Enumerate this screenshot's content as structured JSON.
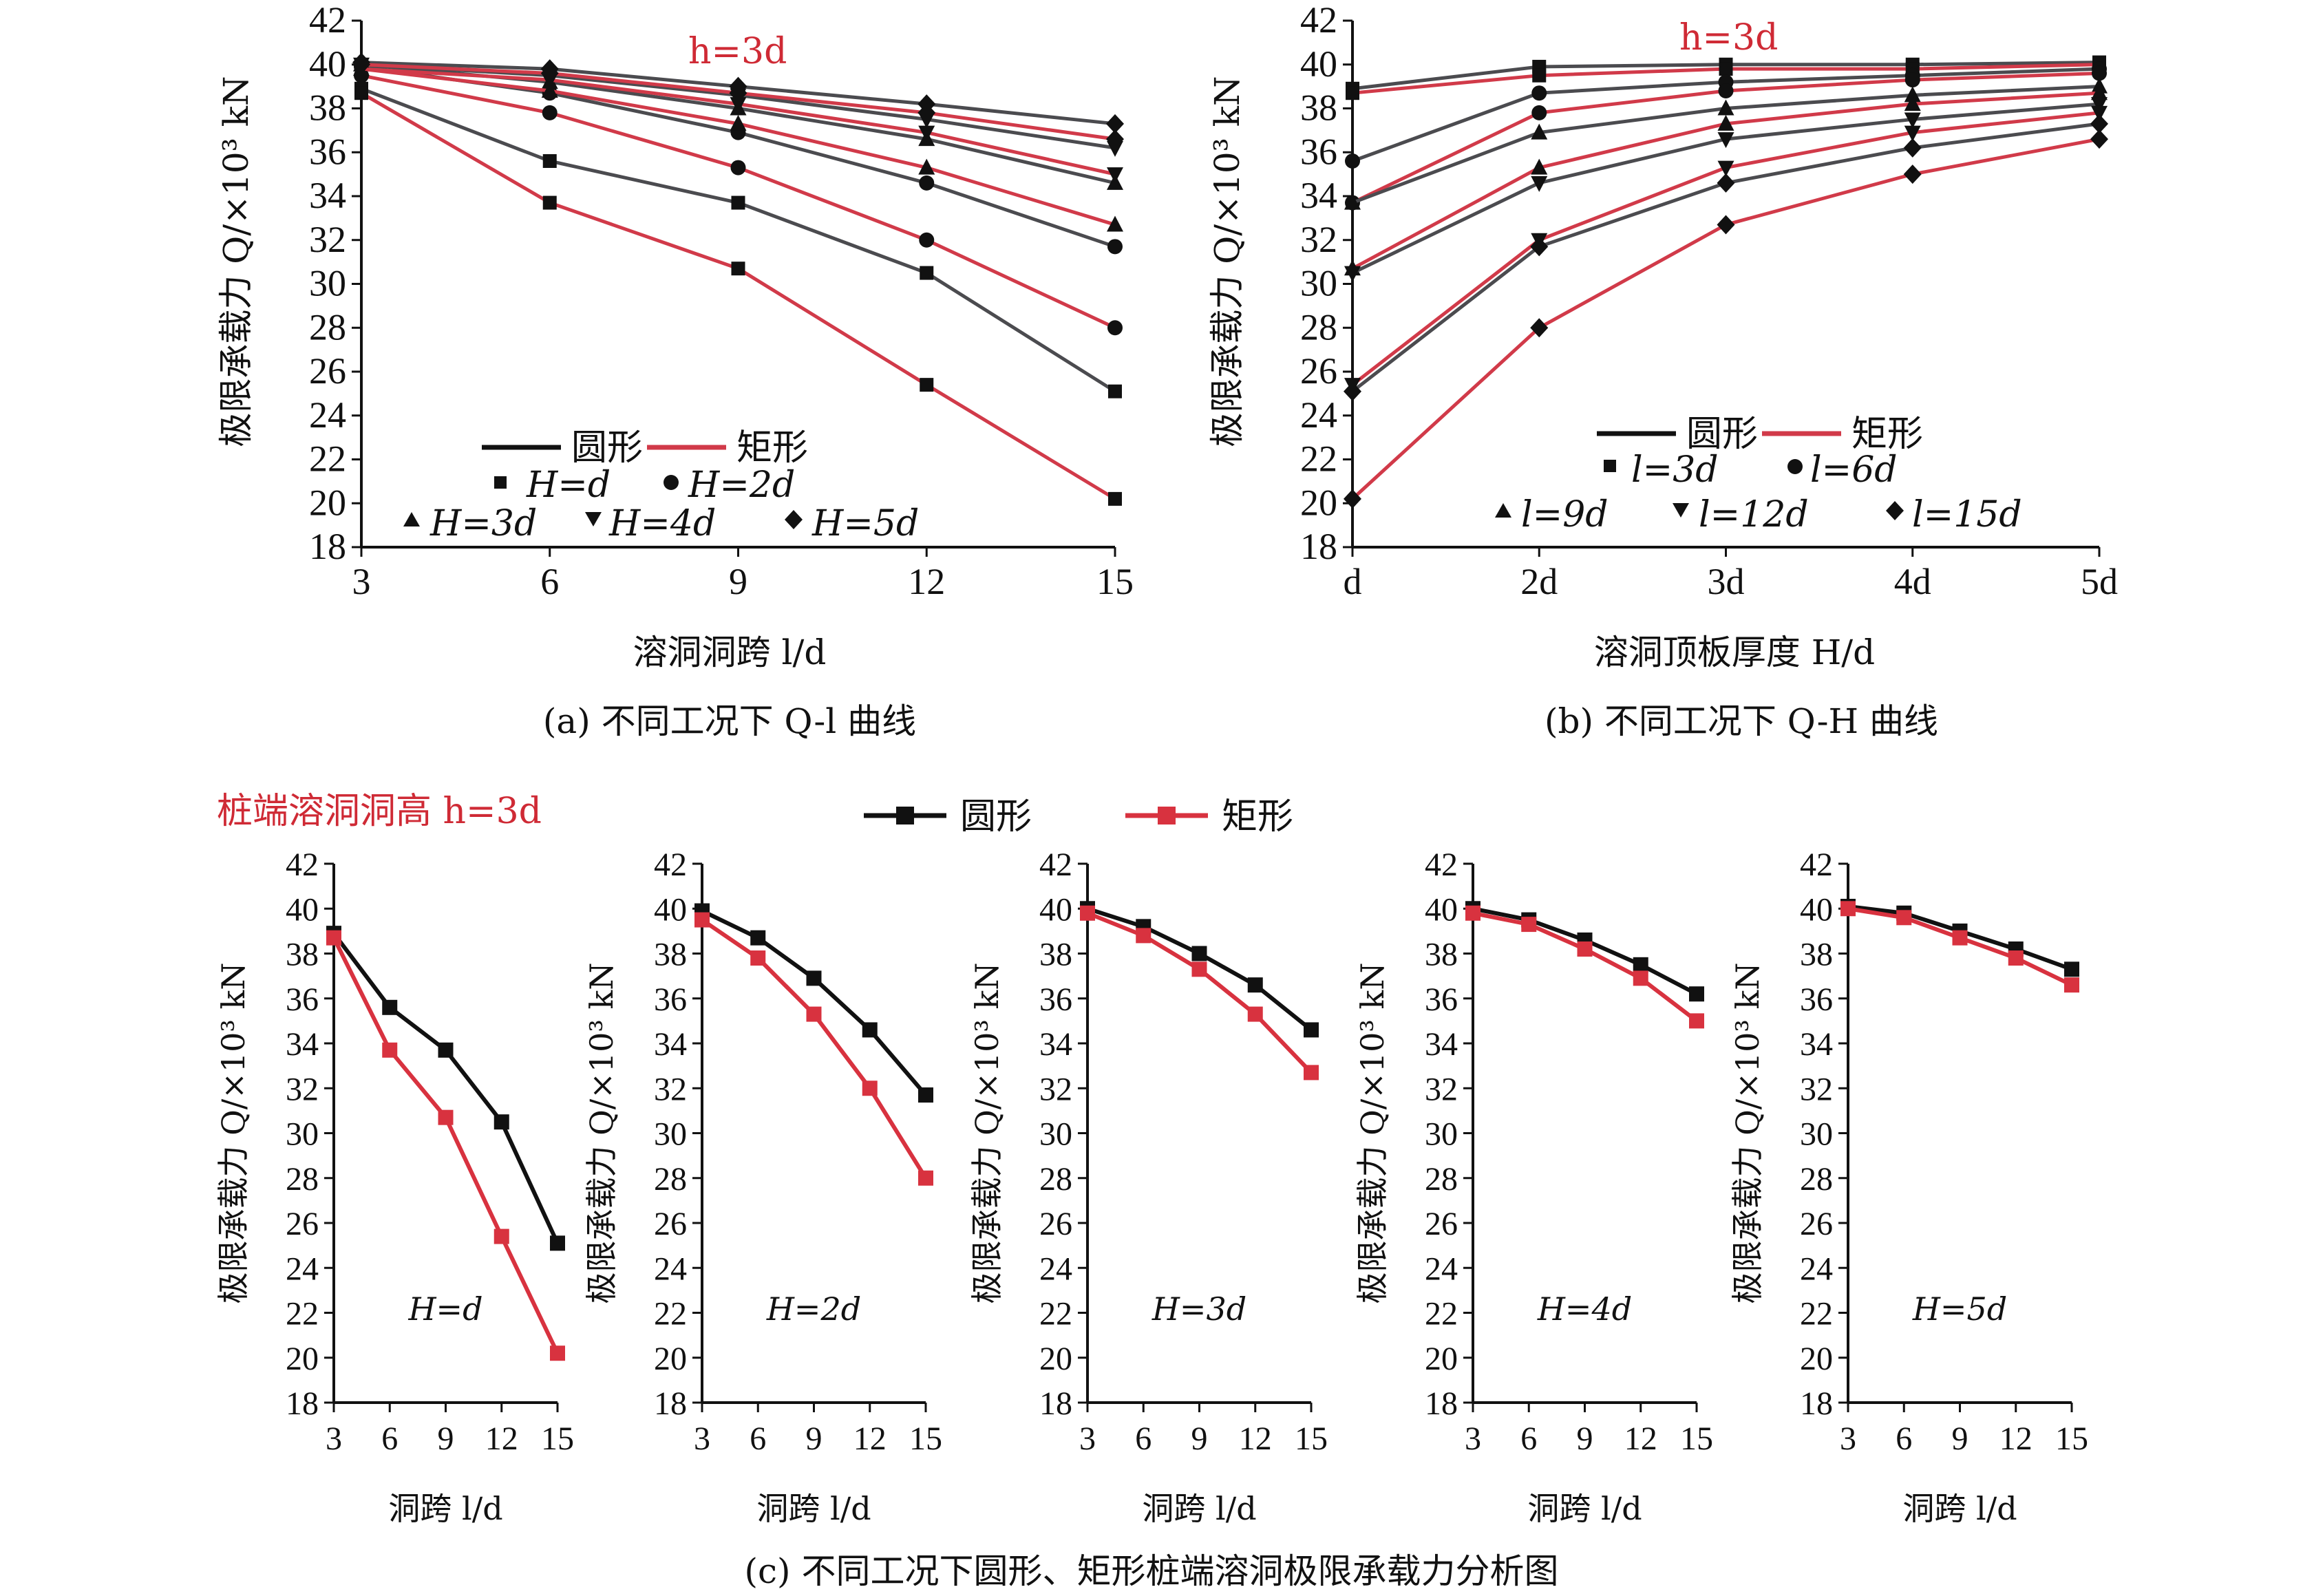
{
  "colors": {
    "circle": "#4b4b4f",
    "rect": "#d13a49",
    "circle_c": "#111111",
    "rect_c": "#d8323f",
    "annot": "#cf2a35"
  },
  "markers": {
    "d": "square",
    "2d": "circle",
    "3d": "triangle-up",
    "4d": "triangle-down",
    "5d": "diamond"
  },
  "panel_a": {
    "caption": "(a) 不同工况下 Q-l 曲线",
    "annotation": "h=3d",
    "ylabel": "极限承载力 Q/×10³ kN",
    "xlabel": "溶洞洞跨 l/d",
    "legend": {
      "circle": "圆形",
      "rect": "矩形",
      "H1": "H=d",
      "H2": "H=2d",
      "H3": "H=3d",
      "H4": "H=4d",
      "H5": "H=5d"
    }
  },
  "panel_b": {
    "caption": "(b) 不同工况下 Q-H 曲线",
    "annotation": "h=3d",
    "ylabel": "极限承载力 Q/×10³ kN",
    "xlabel": "溶洞顶板厚度 H/d",
    "legend": {
      "circle": "圆形",
      "rect": "矩形",
      "l3": "l=3d",
      "l6": "l=6d",
      "l9": "l=9d",
      "l12": "l=12d",
      "l15": "l=15d"
    }
  },
  "panel_c": {
    "caption": "(c) 不同工况下圆形、矩形桩端溶洞极限承载力分析图",
    "annotation": "桩端溶洞洞高 h=3d",
    "ylabel": "极限承载力 Q/×10³ kN",
    "xlabel": "洞跨 l/d",
    "legend": {
      "circle": "圆形",
      "rect": "矩形"
    },
    "subtitles": [
      "H=d",
      "H=2d",
      "H=3d",
      "H=4d",
      "H=5d"
    ]
  },
  "chart_data": [
    {
      "type": "line",
      "x": [
        3,
        6,
        9,
        12,
        15
      ],
      "xlim": [
        3,
        15
      ],
      "ylim": [
        18,
        42
      ],
      "yticks": [
        18,
        20,
        22,
        24,
        26,
        28,
        30,
        32,
        34,
        36,
        38,
        40,
        42
      ],
      "xticks": [
        "3",
        "6",
        "9",
        "12",
        "15"
      ],
      "series": [
        {
          "name": "圆形 H=d",
          "values": [
            38.9,
            35.6,
            33.7,
            30.5,
            25.1
          ]
        },
        {
          "name": "矩形 H=d",
          "values": [
            38.7,
            33.7,
            30.7,
            25.4,
            20.2
          ]
        },
        {
          "name": "圆形 H=2d",
          "values": [
            39.9,
            38.7,
            36.9,
            34.6,
            31.7
          ]
        },
        {
          "name": "矩形 H=2d",
          "values": [
            39.5,
            37.8,
            35.3,
            32.0,
            28.0
          ]
        },
        {
          "name": "圆形 H=3d",
          "values": [
            40.0,
            39.2,
            38.0,
            36.6,
            34.6
          ]
        },
        {
          "name": "矩形 H=3d",
          "values": [
            39.8,
            38.8,
            37.3,
            35.3,
            32.7
          ]
        },
        {
          "name": "圆形 H=4d",
          "values": [
            40.0,
            39.5,
            38.6,
            37.5,
            36.2
          ]
        },
        {
          "name": "矩形 H=4d",
          "values": [
            39.8,
            39.3,
            38.2,
            36.9,
            35.0
          ]
        },
        {
          "name": "圆形 H=5d",
          "values": [
            40.1,
            39.8,
            39.0,
            38.2,
            37.3
          ]
        },
        {
          "name": "矩形 H=5d",
          "values": [
            40.0,
            39.6,
            38.7,
            37.8,
            36.6
          ]
        }
      ]
    },
    {
      "type": "line",
      "categories": [
        "d",
        "2d",
        "3d",
        "4d",
        "5d"
      ],
      "ylim": [
        18,
        42
      ],
      "yticks": [
        18,
        20,
        22,
        24,
        26,
        28,
        30,
        32,
        34,
        36,
        38,
        40,
        42
      ],
      "series": [
        {
          "name": "圆形 l=3d",
          "values": [
            38.9,
            39.9,
            40.0,
            40.0,
            40.1
          ]
        },
        {
          "name": "矩形 l=3d",
          "values": [
            38.7,
            39.5,
            39.8,
            39.8,
            40.0
          ]
        },
        {
          "name": "圆形 l=6d",
          "values": [
            35.6,
            38.7,
            39.2,
            39.5,
            39.8
          ]
        },
        {
          "name": "矩形 l=6d",
          "values": [
            33.7,
            37.8,
            38.8,
            39.3,
            39.6
          ]
        },
        {
          "name": "圆形 l=9d",
          "values": [
            33.7,
            36.9,
            38.0,
            38.6,
            39.0
          ]
        },
        {
          "name": "矩形 l=9d",
          "values": [
            30.7,
            35.3,
            37.3,
            38.2,
            38.7
          ]
        },
        {
          "name": "圆形 l=12d",
          "values": [
            30.5,
            34.6,
            36.6,
            37.5,
            38.2
          ]
        },
        {
          "name": "矩形 l=12d",
          "values": [
            25.4,
            32.0,
            35.3,
            36.9,
            37.8
          ]
        },
        {
          "name": "圆形 l=15d",
          "values": [
            25.1,
            31.7,
            34.6,
            36.2,
            37.3
          ]
        },
        {
          "name": "矩形 l=15d",
          "values": [
            20.2,
            28.0,
            32.7,
            35.0,
            36.6
          ]
        }
      ]
    },
    {
      "type": "line",
      "title": "H=d",
      "x": [
        3,
        6,
        9,
        12,
        15
      ],
      "ylim": [
        18,
        42
      ],
      "series": [
        {
          "name": "圆形",
          "values": [
            38.9,
            35.6,
            33.7,
            30.5,
            25.1
          ]
        },
        {
          "name": "矩形",
          "values": [
            38.7,
            33.7,
            30.7,
            25.4,
            20.2
          ]
        }
      ]
    },
    {
      "type": "line",
      "title": "H=2d",
      "x": [
        3,
        6,
        9,
        12,
        15
      ],
      "ylim": [
        18,
        42
      ],
      "series": [
        {
          "name": "圆形",
          "values": [
            39.9,
            38.7,
            36.9,
            34.6,
            31.7
          ]
        },
        {
          "name": "矩形",
          "values": [
            39.5,
            37.8,
            35.3,
            32.0,
            28.0
          ]
        }
      ]
    },
    {
      "type": "line",
      "title": "H=3d",
      "x": [
        3,
        6,
        9,
        12,
        15
      ],
      "ylim": [
        18,
        42
      ],
      "series": [
        {
          "name": "圆形",
          "values": [
            40.0,
            39.2,
            38.0,
            36.6,
            34.6
          ]
        },
        {
          "name": "矩形",
          "values": [
            39.8,
            38.8,
            37.3,
            35.3,
            32.7
          ]
        }
      ]
    },
    {
      "type": "line",
      "title": "H=4d",
      "x": [
        3,
        6,
        9,
        12,
        15
      ],
      "ylim": [
        18,
        42
      ],
      "series": [
        {
          "name": "圆形",
          "values": [
            40.0,
            39.5,
            38.6,
            37.5,
            36.2
          ]
        },
        {
          "name": "矩形",
          "values": [
            39.8,
            39.3,
            38.2,
            36.9,
            35.0
          ]
        }
      ]
    },
    {
      "type": "line",
      "title": "H=5d",
      "x": [
        3,
        6,
        9,
        12,
        15
      ],
      "ylim": [
        18,
        42
      ],
      "series": [
        {
          "name": "圆形",
          "values": [
            40.1,
            39.8,
            39.0,
            38.2,
            37.3
          ]
        },
        {
          "name": "矩形",
          "values": [
            40.0,
            39.6,
            38.7,
            37.8,
            36.6
          ]
        }
      ]
    }
  ]
}
